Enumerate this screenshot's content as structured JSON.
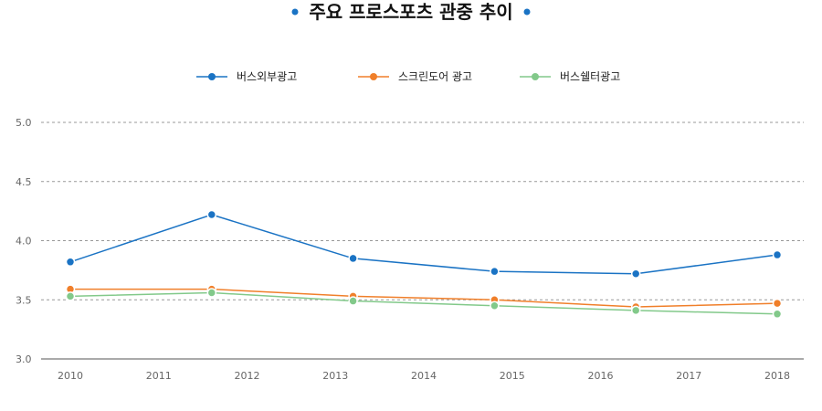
{
  "chart_data": {
    "type": "line",
    "title": "주요 프로스포츠 관중 추이",
    "categories": [
      "2010",
      "2011",
      "2012",
      "2013",
      "2014",
      "2015",
      "2016",
      "2017",
      "2018"
    ],
    "y_ticks": [
      "5.0",
      "4.5",
      "4.0",
      "3.5",
      "3.0"
    ],
    "ylim": [
      3.0,
      5.0
    ],
    "grid": true,
    "legend_position": "top-center",
    "series": [
      {
        "name": "버스외부광고",
        "color": "#1a73c4",
        "x": [
          2010,
          2011.6,
          2013.2,
          2014.8,
          2016.4,
          2018
        ],
        "values": [
          3.82,
          4.22,
          3.85,
          3.74,
          3.72,
          3.88
        ]
      },
      {
        "name": "스크린도어 광고",
        "color": "#f07f2a",
        "x": [
          2010,
          2011.6,
          2013.2,
          2014.8,
          2016.4,
          2018
        ],
        "values": [
          3.59,
          3.59,
          3.53,
          3.5,
          3.44,
          3.47
        ]
      },
      {
        "name": "버스쉘터광고",
        "color": "#82c98a",
        "x": [
          2010,
          2011.6,
          2013.2,
          2014.8,
          2016.4,
          2018
        ],
        "values": [
          3.53,
          3.56,
          3.49,
          3.45,
          3.41,
          3.38
        ]
      }
    ]
  },
  "title_dot_color": "#1a73c4",
  "grid_color": "#999999",
  "axis_color": "#555555"
}
